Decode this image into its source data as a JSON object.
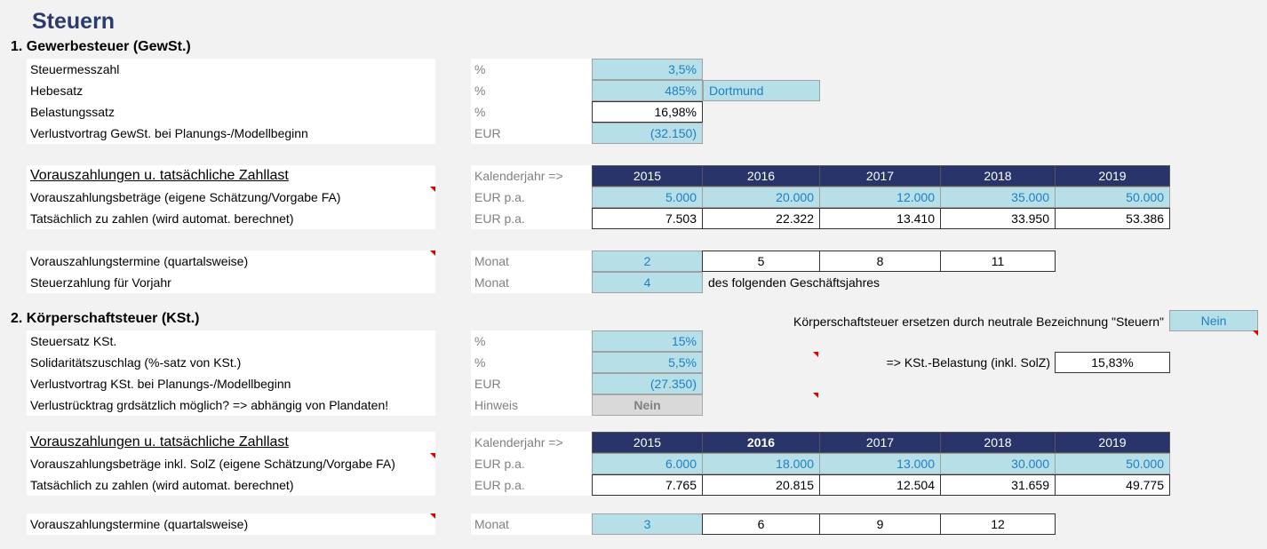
{
  "title": "Steuern",
  "gewst": {
    "heading": "1.  Gewerbesteuer (GewSt.)",
    "rows": [
      {
        "label": "Steuermesszahl",
        "unit": "%",
        "value": "3,5%"
      },
      {
        "label": "Hebesatz",
        "unit": "%",
        "value": "485%",
        "extra": "Dortmund"
      },
      {
        "label": "Belastungssatz",
        "unit": "%",
        "value": "16,98%"
      },
      {
        "label": "Verlustvortrag GewSt. bei Planungs-/Modellbeginn",
        "unit": "EUR",
        "value": "(32.150)"
      }
    ],
    "table": {
      "title": "Vorauszahlungen u. tatsächliche Zahllast",
      "unit": "Kalenderjahr  =>",
      "years": [
        "2015",
        "2016",
        "2017",
        "2018",
        "2019"
      ],
      "rows": [
        {
          "label": "Vorauszahlungsbeträge (eigene Schätzung/Vorgabe FA)",
          "unit": "EUR p.a.",
          "values": [
            "5.000",
            "20.000",
            "12.000",
            "35.000",
            "50.000"
          ]
        },
        {
          "label": "Tatsächlich zu zahlen (wird automat. berechnet)",
          "unit": "EUR p.a.",
          "values": [
            "7.503",
            "22.322",
            "13.410",
            "33.950",
            "53.386"
          ]
        }
      ]
    },
    "termine": {
      "label": "Vorauszahlungstermine (quartalsweise)",
      "unit": "Monat",
      "values": [
        "2",
        "5",
        "8",
        "11"
      ]
    },
    "vorjahr": {
      "label": "Steuerzahlung für Vorjahr",
      "unit": "Monat",
      "value": "4",
      "note": "des folgenden Geschäftsjahres"
    }
  },
  "kst": {
    "heading": "2.  Körperschaftsteuer (KSt.)",
    "replace_label": "Körperschaftsteuer ersetzen durch neutrale Bezeichnung \"Steuern\"",
    "replace_value": "Nein",
    "belastung_label": "=> KSt.-Belastung (inkl. SolZ)",
    "belastung_value": "15,83%",
    "rows": [
      {
        "label": "Steuersatz KSt.",
        "unit": "%",
        "value": "15%"
      },
      {
        "label": "Solidaritätszuschlag (%-satz von KSt.)",
        "unit": "%",
        "value": "5,5%"
      },
      {
        "label": "Verlustvortrag KSt. bei Planungs-/Modellbeginn",
        "unit": "EUR",
        "value": "(27.350)"
      },
      {
        "label": "Verlustrücktrag grdsätzlich möglich? => abhängig von Plandaten!",
        "unit": "Hinweis",
        "value": "Nein"
      }
    ],
    "table": {
      "title": "Vorauszahlungen u. tatsächliche Zahllast",
      "unit": "Kalenderjahr  =>",
      "years": [
        "2015",
        "2016",
        "2017",
        "2018",
        "2019"
      ],
      "rows": [
        {
          "label": "Vorauszahlungsbeträge inkl. SolZ (eigene Schätzung/Vorgabe FA)",
          "unit": "EUR p.a.",
          "values": [
            "6.000",
            "18.000",
            "13.000",
            "30.000",
            "50.000"
          ]
        },
        {
          "label": "Tatsächlich zu zahlen (wird automat. berechnet)",
          "unit": "EUR p.a.",
          "values": [
            "7.765",
            "20.815",
            "12.504",
            "31.659",
            "49.775"
          ]
        }
      ]
    },
    "termine": {
      "label": "Vorauszahlungstermine (quartalsweise)",
      "unit": "Monat",
      "values": [
        "3",
        "6",
        "9",
        "12"
      ]
    }
  }
}
